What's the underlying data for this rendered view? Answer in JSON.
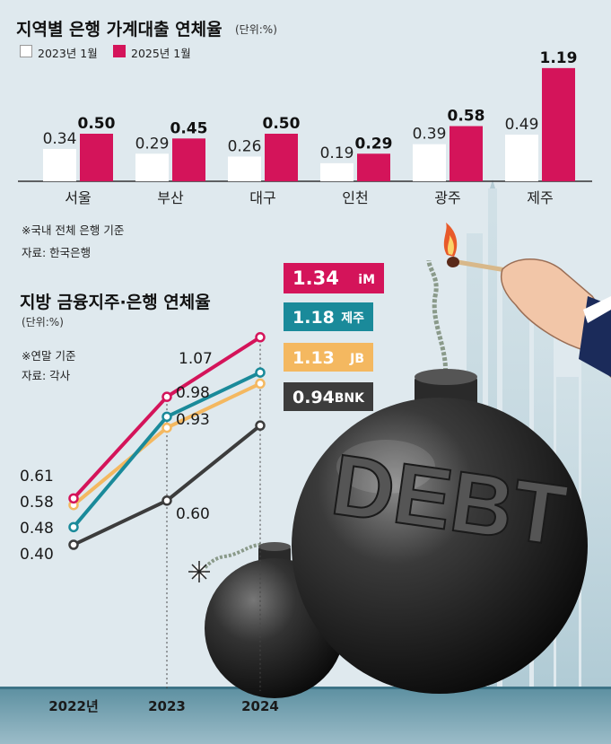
{
  "colors": {
    "background": "#dfe9ee",
    "bar_2023": "#ffffff",
    "bar_2025": "#d4145a",
    "im": "#d4145a",
    "jeju": "#1a8a9a",
    "jb": "#f4b860",
    "bnk": "#3c3c3c"
  },
  "chart_data": [
    {
      "type": "bar",
      "title": "지역별 은행 가계대출 연체율",
      "unit": "(단위:%)",
      "legend_position": "top-left",
      "categories": [
        "서울",
        "부산",
        "대구",
        "인천",
        "광주",
        "제주"
      ],
      "series": [
        {
          "name": "2023년 1월",
          "values": [
            0.34,
            0.29,
            0.26,
            0.19,
            0.39,
            0.49
          ]
        },
        {
          "name": "2025년 1월",
          "values": [
            0.5,
            0.45,
            0.5,
            0.29,
            0.58,
            1.19
          ]
        }
      ],
      "ylim": [
        0,
        1.25
      ],
      "notes": [
        "※국내 전체 은행 기준",
        "자료: 한국은행"
      ]
    },
    {
      "type": "line",
      "title": "지방 금융지주·은행 연체율",
      "unit": "(단위:%)",
      "x": [
        "2022년",
        "2023",
        "2024"
      ],
      "series": [
        {
          "name": "iM",
          "values": [
            0.61,
            1.07,
            1.34
          ]
        },
        {
          "name": "제주",
          "values": [
            0.48,
            0.98,
            1.18
          ]
        },
        {
          "name": "JB",
          "values": [
            0.58,
            0.93,
            1.13
          ]
        },
        {
          "name": "BNK",
          "values": [
            0.4,
            0.6,
            0.94
          ]
        }
      ],
      "ylim": [
        0.3,
        1.5
      ],
      "notes": [
        "※연말 기준",
        "자료: 각사"
      ]
    }
  ],
  "illustration": {
    "bomb_label": "DEBT",
    "icons": [
      "bomb-icon",
      "match-icon",
      "hand-icon",
      "city-skyline-icon"
    ]
  }
}
